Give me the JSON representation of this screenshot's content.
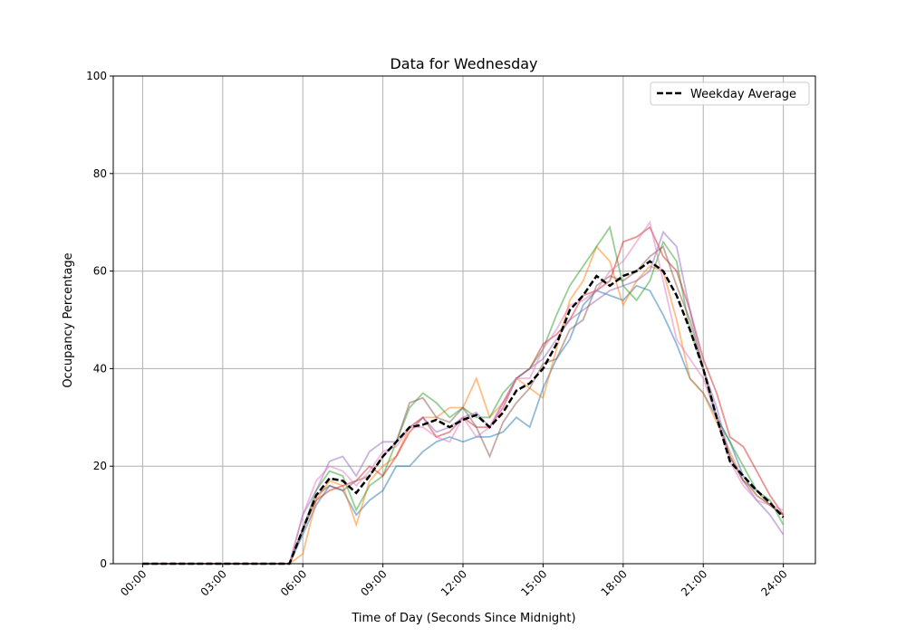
{
  "chart_data": {
    "type": "line",
    "title": "Data for Wednesday",
    "xlabel": "Time of Day (Seconds Since Midnight)",
    "ylabel": "Occupancy Percentage",
    "ylim": [
      0,
      100
    ],
    "xlim_hours": [
      -1.1,
      25.2
    ],
    "grid": true,
    "legend_placement": "top-right",
    "x_ticks": [
      {
        "hour": 0,
        "label": "00:00"
      },
      {
        "hour": 3,
        "label": "03:00"
      },
      {
        "hour": 6,
        "label": "06:00"
      },
      {
        "hour": 9,
        "label": "09:00"
      },
      {
        "hour": 12,
        "label": "12:00"
      },
      {
        "hour": 15,
        "label": "15:00"
      },
      {
        "hour": 18,
        "label": "18:00"
      },
      {
        "hour": 21,
        "label": "21:00"
      },
      {
        "hour": 24,
        "label": "24:00"
      }
    ],
    "y_ticks": [
      0,
      20,
      40,
      60,
      80,
      100
    ],
    "x_step_hours": 0.5,
    "series": [
      {
        "color": "#1f77b4",
        "values": [
          0,
          0,
          0,
          0,
          0,
          0,
          0,
          0,
          0,
          0,
          0,
          0,
          6,
          12,
          16,
          15,
          10,
          13,
          15,
          20,
          20,
          23,
          25,
          26,
          25,
          26,
          26,
          27,
          30,
          28,
          36,
          42,
          46,
          53,
          56,
          55,
          54,
          57,
          56,
          51,
          45,
          38,
          35,
          30,
          25,
          18,
          14,
          12,
          10
        ]
      },
      {
        "color": "#ff7f0e",
        "values": [
          0,
          0,
          0,
          0,
          0,
          0,
          0,
          0,
          0,
          0,
          0,
          0,
          2,
          13,
          17,
          16,
          8,
          17,
          20,
          22,
          28,
          30,
          30,
          32,
          32,
          38,
          30,
          33,
          38,
          36,
          34,
          44,
          54,
          58,
          65,
          62,
          53,
          58,
          61,
          60,
          50,
          38,
          35,
          29,
          23,
          17,
          14,
          12,
          10
        ]
      },
      {
        "color": "#2ca02c",
        "values": [
          0,
          0,
          0,
          0,
          0,
          0,
          0,
          0,
          0,
          0,
          0,
          0,
          7,
          15,
          19,
          18,
          11,
          16,
          18,
          25,
          32,
          35,
          33,
          30,
          32,
          30,
          30,
          35,
          38,
          40,
          44,
          51,
          57,
          61,
          65,
          69,
          57,
          54,
          58,
          66,
          62,
          48,
          40,
          30,
          25,
          20,
          15,
          13,
          8
        ]
      },
      {
        "color": "#d62728",
        "values": [
          0,
          0,
          0,
          0,
          0,
          0,
          0,
          0,
          0,
          0,
          0,
          0,
          7,
          13,
          15,
          16,
          17,
          20,
          18,
          22,
          27,
          30,
          26,
          27,
          30,
          28,
          28,
          32,
          38,
          40,
          45,
          47,
          50,
          55,
          56,
          58,
          66,
          67,
          69,
          63,
          60,
          52,
          42,
          35,
          26,
          24,
          19,
          14,
          10
        ]
      },
      {
        "color": "#9467bd",
        "values": [
          0,
          0,
          0,
          0,
          0,
          0,
          0,
          0,
          0,
          0,
          0,
          0,
          10,
          15,
          21,
          22,
          18,
          23,
          25,
          25,
          28,
          30,
          27,
          28,
          30,
          31,
          28,
          33,
          38,
          40,
          42,
          46,
          50,
          52,
          54,
          56,
          57,
          58,
          60,
          68,
          65,
          52,
          40,
          32,
          22,
          17,
          13,
          10,
          6
        ]
      },
      {
        "color": "#8c564b",
        "values": [
          0,
          0,
          0,
          0,
          0,
          0,
          0,
          0,
          0,
          0,
          0,
          0,
          7,
          14,
          16,
          15,
          17,
          18,
          22,
          25,
          33,
          34,
          30,
          29,
          32,
          28,
          22,
          29,
          33,
          36,
          41,
          42,
          48,
          50,
          57,
          59,
          58,
          60,
          63,
          65,
          57,
          50,
          40,
          30,
          22,
          17,
          15,
          12,
          10
        ]
      },
      {
        "color": "#e377c2",
        "values": [
          0,
          0,
          0,
          0,
          0,
          0,
          0,
          0,
          0,
          0,
          0,
          0,
          10,
          17,
          20,
          19,
          16,
          19,
          23,
          24,
          28,
          28,
          26,
          25,
          30,
          26,
          28,
          33,
          38,
          38,
          44,
          48,
          53,
          54,
          56,
          60,
          62,
          66,
          70,
          58,
          46,
          42,
          38,
          30,
          21,
          16,
          13,
          12,
          11
        ]
      }
    ],
    "average": {
      "name": "Weekday Average",
      "color": "#000000",
      "style": "dashed",
      "values": [
        0,
        0,
        0,
        0,
        0,
        0,
        0,
        0,
        0,
        0,
        0,
        0,
        7,
        14,
        17.5,
        17,
        14.5,
        18,
        22,
        25,
        28,
        28.5,
        29.5,
        28,
        29.5,
        30.5,
        28,
        31,
        35.5,
        37,
        40,
        45,
        52,
        55,
        59,
        57,
        59,
        60,
        62,
        60,
        55,
        48,
        40,
        30,
        21,
        18,
        15,
        12.5,
        9.5
      ]
    }
  }
}
